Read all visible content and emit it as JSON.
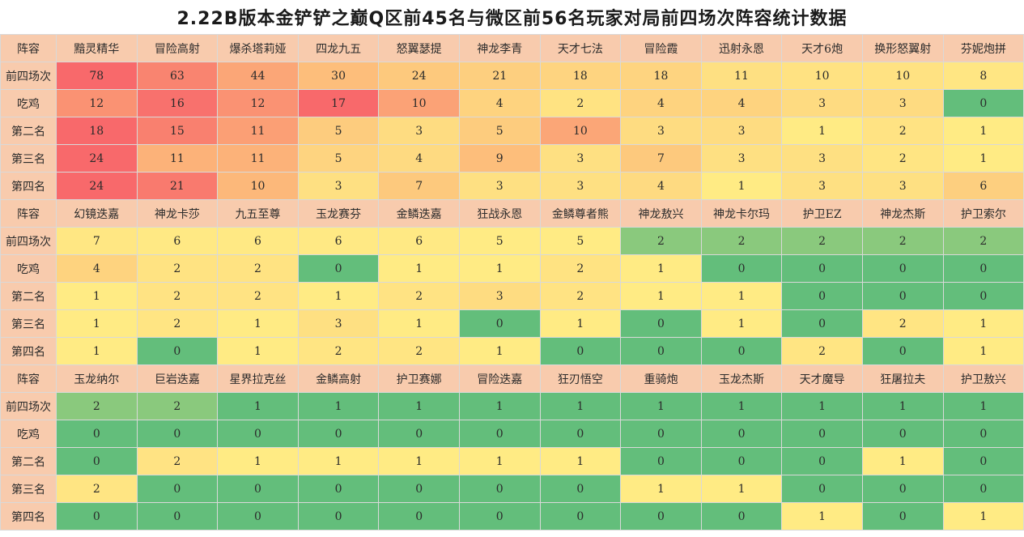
{
  "title": "2.22B版本金铲铲之巅Q区前45名与微区前56名玩家对局前四场次阵容统计数据",
  "colors": {
    "scale_low": "#63be7b",
    "scale_mid": "#ffeb84",
    "scale_high": "#f8696b",
    "header_bg": "#f8cbad"
  },
  "sections": [
    {
      "header_label": "阵容",
      "compositions": [
        "黯灵精华",
        "冒险高射",
        "爆杀塔莉娅",
        "四龙九五",
        "怒翼瑟提",
        "神龙李青",
        "天才七法",
        "冒险霞",
        "迅射永恩",
        "天才6炮",
        "换形怒翼射",
        "芬妮炮拼"
      ],
      "rows": [
        {
          "label": "前四场次",
          "values": [
            78,
            63,
            44,
            30,
            24,
            21,
            18,
            18,
            11,
            10,
            10,
            8
          ]
        },
        {
          "label": "吃鸡",
          "values": [
            12,
            16,
            12,
            17,
            10,
            4,
            2,
            4,
            4,
            3,
            3,
            0
          ]
        },
        {
          "label": "第二名",
          "values": [
            18,
            15,
            11,
            5,
            3,
            5,
            10,
            3,
            3,
            1,
            2,
            1
          ]
        },
        {
          "label": "第三名",
          "values": [
            24,
            11,
            11,
            5,
            4,
            9,
            3,
            7,
            3,
            3,
            2,
            1
          ]
        },
        {
          "label": "第四名",
          "values": [
            24,
            21,
            10,
            3,
            7,
            3,
            3,
            4,
            1,
            3,
            3,
            6
          ]
        }
      ]
    },
    {
      "header_label": "阵容",
      "compositions": [
        "幻镜迭嘉",
        "神龙卡莎",
        "九五至尊",
        "玉龙赛芬",
        "金鳞迭嘉",
        "狂战永恩",
        "金鳞尊者熊",
        "神龙敖兴",
        "神龙卡尔玛",
        "护卫EZ",
        "神龙杰斯",
        "护卫索尔"
      ],
      "rows": [
        {
          "label": "前四场次",
          "values": [
            7,
            6,
            6,
            6,
            6,
            5,
            5,
            2,
            2,
            2,
            2,
            2
          ]
        },
        {
          "label": "吃鸡",
          "values": [
            4,
            2,
            2,
            0,
            1,
            1,
            2,
            1,
            0,
            0,
            0,
            0
          ]
        },
        {
          "label": "第二名",
          "values": [
            1,
            2,
            2,
            1,
            2,
            3,
            2,
            1,
            1,
            0,
            0,
            0
          ]
        },
        {
          "label": "第三名",
          "values": [
            1,
            2,
            1,
            3,
            1,
            0,
            1,
            0,
            1,
            0,
            2,
            1
          ]
        },
        {
          "label": "第四名",
          "values": [
            1,
            0,
            1,
            2,
            2,
            1,
            0,
            0,
            0,
            2,
            0,
            1
          ]
        }
      ]
    },
    {
      "header_label": "阵容",
      "compositions": [
        "玉龙纳尔",
        "巨岩迭嘉",
        "星界拉克丝",
        "金鳞高射",
        "护卫赛娜",
        "冒险迭嘉",
        "狂刃悟空",
        "重骑炮",
        "玉龙杰斯",
        "天才魔导",
        "狂屠拉夫",
        "护卫敖兴"
      ],
      "rows": [
        {
          "label": "前四场次",
          "values": [
            2,
            2,
            1,
            1,
            1,
            1,
            1,
            1,
            1,
            1,
            1,
            1
          ]
        },
        {
          "label": "吃鸡",
          "values": [
            0,
            0,
            0,
            0,
            0,
            0,
            0,
            0,
            0,
            0,
            0,
            0
          ]
        },
        {
          "label": "第二名",
          "values": [
            0,
            2,
            1,
            1,
            1,
            1,
            1,
            0,
            0,
            0,
            1,
            0
          ]
        },
        {
          "label": "第三名",
          "values": [
            2,
            0,
            0,
            0,
            0,
            0,
            0,
            1,
            1,
            0,
            0,
            0
          ]
        },
        {
          "label": "第四名",
          "values": [
            0,
            0,
            0,
            0,
            0,
            0,
            0,
            0,
            0,
            1,
            0,
            1
          ]
        }
      ]
    }
  ]
}
